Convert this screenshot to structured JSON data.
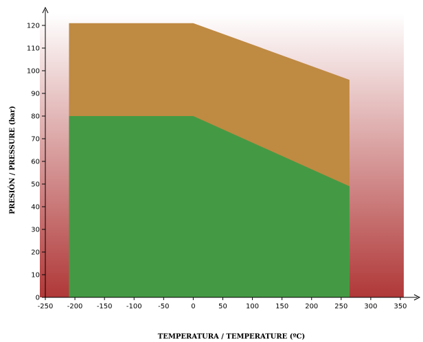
{
  "chart_data": {
    "type": "area",
    "xlabel": "TEMPERATURA / TEMPERATURE (ºC)",
    "ylabel": "PRESIÓN / PRESSURE (bar)",
    "xlim": [
      -250,
      350
    ],
    "ylim": [
      0,
      120
    ],
    "x_ticks": [
      -250,
      -200,
      -150,
      -100,
      -50,
      0,
      50,
      100,
      150,
      200,
      250,
      300,
      350
    ],
    "y_ticks": [
      0,
      10,
      20,
      30,
      40,
      50,
      60,
      70,
      80,
      90,
      100,
      110,
      120
    ],
    "background_gradient": {
      "top": "#ffffff",
      "bottom": "#b03838"
    },
    "series": [
      {
        "color": "#bf8a42",
        "x": [
          -210,
          0,
          264
        ],
        "y": [
          121,
          121,
          96
        ]
      },
      {
        "color": "#449a44",
        "x": [
          -210,
          0,
          264
        ],
        "y": [
          80,
          80,
          49
        ]
      }
    ]
  }
}
